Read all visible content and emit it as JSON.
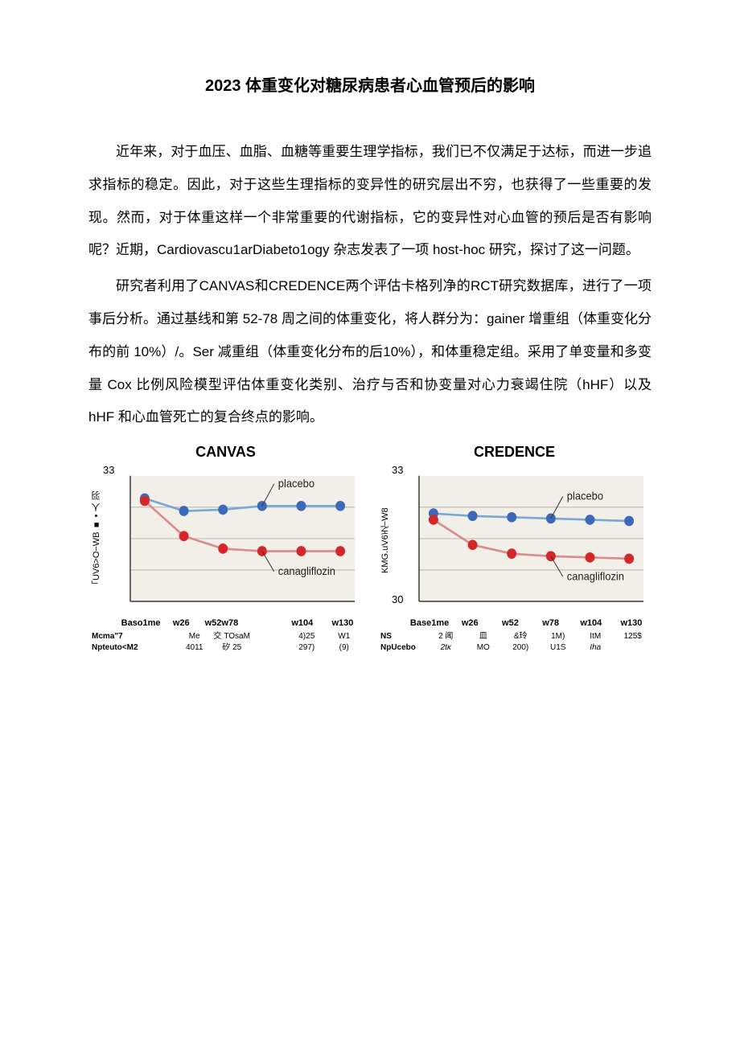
{
  "title": "2023 体重变化对糖尿病患者心血管预后的影响",
  "paragraphs": {
    "p1": "近年来，对于血压、血脂、血糖等重要生理学指标，我们已不仅满足于达标，而进一步追求指标的稳定。因此，对于这些生理指标的变异性的研究层出不穷，也获得了一些重要的发现。然而，对于体重这样一个非常重要的代谢指标，它的变异性对心血管的预后是否有影响呢？近期，Cardiovascu1arDiabeto1ogy 杂志发表了一项 host-hoc 研究，探讨了这一问题。",
    "p2": "研究者利用了CANVAS和CREDENCE两个评估卡格列净的RCT研究数据库，进行了一项事后分析。通过基线和第 52-78 周之间的体重变化，将人群分为：gainer 增重组（体重变化分布的前 10%）/。Ser 减重组（体重变化分布的后10%），和体重稳定组。采用了单变量和多变量 Cox 比例风险模型评估体重变化类别、治疗与否和协变量对心力衰竭住院（hHF）以及 hHF 和心血管死亡的复合终点的影响。"
  },
  "charts": {
    "canvas": {
      "title": "CANVAS",
      "y_max_label": "33",
      "y_min_label": "",
      "y_axis_label": "「UV6>O−WB ■ • 人 羽",
      "plot_bg": "#f2efe8",
      "grid_color": "#bdbab2",
      "axis_color": "#3a3a3a",
      "placebo": {
        "color_line": "#7aa8d6",
        "color_marker": "#3d6ab8",
        "label": "placebo",
        "x": [
          0,
          1,
          2,
          3,
          4,
          5
        ],
        "y": [
          0.18,
          0.28,
          0.27,
          0.24,
          0.24,
          0.24
        ]
      },
      "cana": {
        "color_line": "#d98a8a",
        "color_marker": "#d62728",
        "label": "canagliflozin",
        "x": [
          0,
          1,
          2,
          3,
          4,
          5
        ],
        "y": [
          0.2,
          0.48,
          0.58,
          0.6,
          0.6,
          0.6
        ]
      },
      "x_ticks": [
        "Baso1me",
        "w26",
        "w52w78",
        "",
        "w104",
        "w130"
      ],
      "n_rows": [
        {
          "label": "Mcma\"7",
          "vals": [
            "",
            "Me",
            "交 TOsaM",
            "",
            "4)25",
            "W1"
          ]
        },
        {
          "label": "Npteuto<M2",
          "vals": [
            "",
            "4011",
            "矽 25",
            "",
            "297)",
            "(9)"
          ]
        }
      ]
    },
    "credence": {
      "title": "CREDENCE",
      "y_max_label": "33",
      "y_min_label": "30",
      "y_axis_label": "KMG.uV6乏−W8",
      "plot_bg": "#f2efe8",
      "grid_color": "#bdbab2",
      "axis_color": "#3a3a3a",
      "placebo": {
        "color_line": "#7aa8d6",
        "color_marker": "#3d6ab8",
        "label": "placebo",
        "x": [
          0,
          1,
          2,
          3,
          4,
          5
        ],
        "y": [
          0.3,
          0.32,
          0.33,
          0.34,
          0.35,
          0.36
        ]
      },
      "cana": {
        "color_line": "#d98a8a",
        "color_marker": "#d62728",
        "label": "canagliflozin",
        "x": [
          0,
          1,
          2,
          3,
          4,
          5
        ],
        "y": [
          0.35,
          0.55,
          0.62,
          0.64,
          0.65,
          0.66
        ]
      },
      "x_ticks": [
        "Base1me",
        "w26",
        "w52",
        "w78",
        "w104",
        "w130"
      ],
      "n_rows": [
        {
          "label": "NS",
          "vals": [
            "2 闻",
            "皿",
            "&玲",
            "1M)",
            "ItM",
            "125$"
          ]
        },
        {
          "label": "NpUcebo",
          "vals": [
            "2tκ",
            "MO",
            "200)",
            "U1S",
            "Iha",
            ""
          ]
        }
      ]
    }
  }
}
